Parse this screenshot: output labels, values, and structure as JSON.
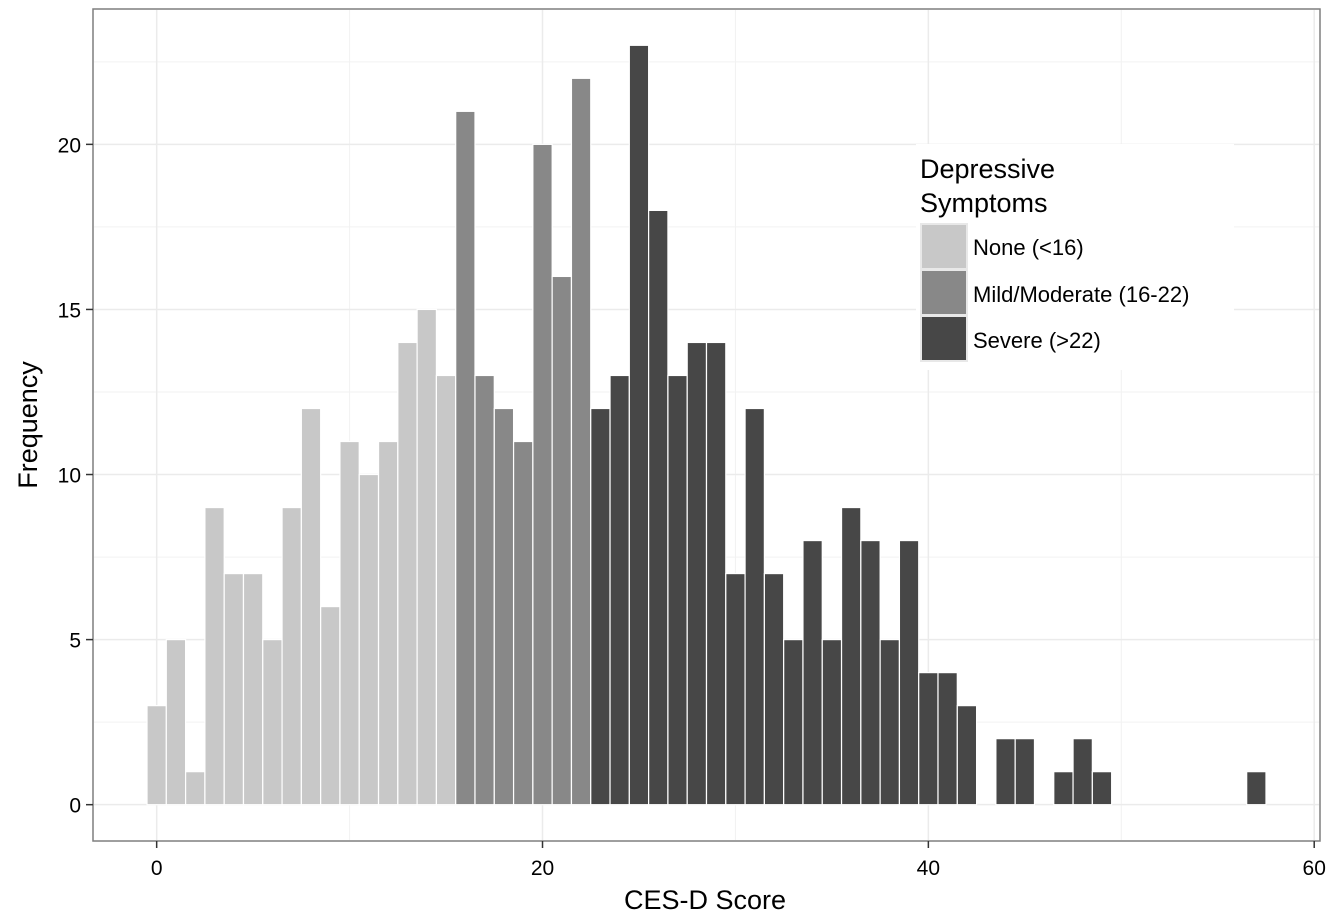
{
  "chart_data": {
    "type": "bar",
    "title": "",
    "xlabel": "CES-D Score",
    "ylabel": "Frequency",
    "xlim": [
      -3.3,
      60.3
    ],
    "ylim": [
      -1.1,
      24.1
    ],
    "xticks": [
      0,
      20,
      40,
      60
    ],
    "yticks": [
      0,
      5,
      10,
      15,
      20
    ],
    "grid": true,
    "legend": {
      "title_lines": [
        "Depressive",
        "Symptoms"
      ],
      "placement": "top-right"
    },
    "series": [
      {
        "name": "None (<16)",
        "color": "#c8c8c8",
        "x": [
          0,
          1,
          2,
          3,
          4,
          5,
          6,
          7,
          8,
          9,
          10,
          11,
          12,
          13,
          14,
          15
        ],
        "values": [
          3,
          5,
          1,
          9,
          7,
          7,
          5,
          9,
          12,
          6,
          11,
          10,
          11,
          14,
          15,
          13
        ]
      },
      {
        "name": "Mild/Moderate (16-22)",
        "color": "#888888",
        "x": [
          16,
          17,
          18,
          19,
          20,
          21,
          22
        ],
        "values": [
          21,
          13,
          12,
          11,
          20,
          16,
          22
        ]
      },
      {
        "name": "Severe (>22)",
        "color": "#474747",
        "x": [
          23,
          24,
          25,
          26,
          27,
          28,
          29,
          30,
          31,
          32,
          33,
          34,
          35,
          36,
          37,
          38,
          39,
          40,
          41,
          42,
          43,
          44,
          45,
          46,
          47,
          48,
          49,
          50,
          51,
          52,
          53,
          54,
          55,
          56,
          57
        ],
        "values": [
          12,
          13,
          23,
          18,
          13,
          14,
          14,
          7,
          12,
          7,
          5,
          8,
          5,
          9,
          8,
          5,
          8,
          4,
          4,
          3,
          0,
          2,
          2,
          0,
          1,
          2,
          1,
          0,
          0,
          0,
          0,
          0,
          0,
          0,
          1
        ]
      }
    ]
  }
}
